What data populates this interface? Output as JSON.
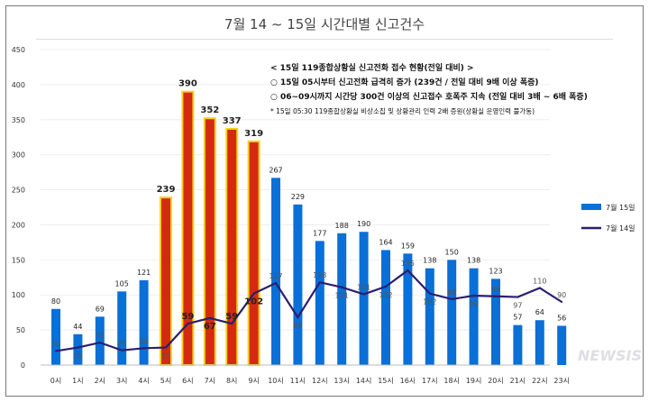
{
  "chart_data": {
    "type": "bar+line",
    "title": "7월 14 ~ 15일 시간대별 신고건수",
    "categories": [
      "0시",
      "1시",
      "2시",
      "3시",
      "4시",
      "5시",
      "6시",
      "7시",
      "8시",
      "9시",
      "10시",
      "11시",
      "12시",
      "13시",
      "14시",
      "15시",
      "16시",
      "17시",
      "18시",
      "19시",
      "20시",
      "21시",
      "22시",
      "23시"
    ],
    "ylim": [
      0,
      450
    ],
    "yticks": [
      0,
      50,
      100,
      150,
      200,
      250,
      300,
      350,
      400,
      450
    ],
    "grid": true,
    "legend": "right",
    "series": [
      {
        "name": "7월 15일",
        "type": "bar",
        "color": "#0a6fd6",
        "highlight_color": "#d42a12",
        "highlight_border": "#f5d21a",
        "highlight_range": [
          "5시",
          "9시"
        ],
        "values": [
          80,
          44,
          69,
          105,
          121,
          239,
          390,
          352,
          337,
          319,
          267,
          229,
          177,
          188,
          190,
          164,
          159,
          138,
          150,
          138,
          123,
          57,
          64,
          56
        ]
      },
      {
        "name": "7월 14일",
        "type": "line",
        "color": "#2a1f6e",
        "values": [
          20,
          25,
          32,
          21,
          24,
          25,
          59,
          67,
          59,
          102,
          117,
          68,
          118,
          111,
          101,
          112,
          135,
          102,
          94,
          99,
          98,
          97,
          110,
          90
        ]
      }
    ],
    "annotations": {
      "heading": "< 15일 119종합상황실 신고전화 접수 현황(전일 대비) >",
      "line1": "○ 15일 05시부터 신고전화 급격히 증가 (239건 / 전일 대비 9배 이상 폭증)",
      "line2": "○ 06~09시까지 시간당 300건 이상의 신고접수 호폭주 지속 (전일 대비 3배 ~ 6배 폭증)",
      "footnote": "* 15일 05:30  119종합상황실 비상소집 및 상황관리 인력 2배 증원(상황실 운영인력 풀가동)"
    }
  },
  "watermark": "NEWSIS"
}
